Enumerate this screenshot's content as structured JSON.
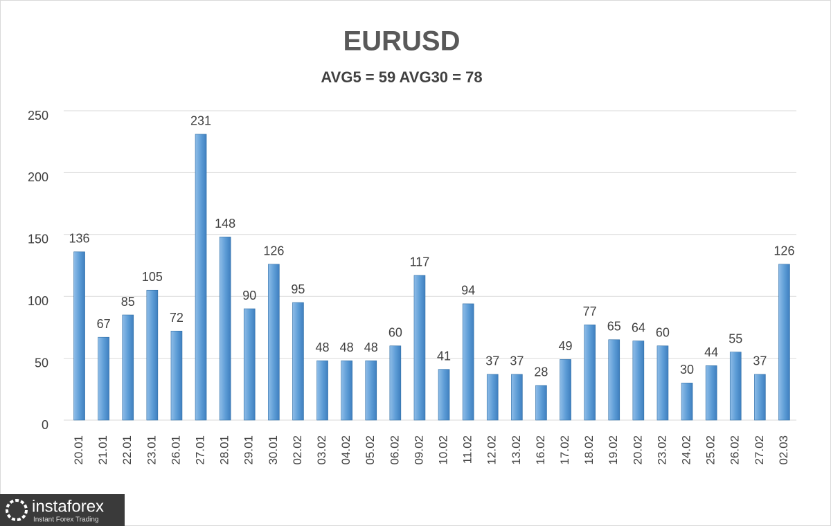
{
  "chart_data": {
    "type": "bar",
    "title": "EURUSD",
    "subtitle": "AVG5 = 59 AVG30 = 78",
    "categories": [
      "20.01",
      "21.01",
      "22.01",
      "23.01",
      "26.01",
      "27.01",
      "28.01",
      "29.01",
      "30.01",
      "02.02",
      "03.02",
      "04.02",
      "05.02",
      "06.02",
      "09.02",
      "10.02",
      "11.02",
      "12.02",
      "13.02",
      "16.02",
      "17.02",
      "18.02",
      "19.02",
      "20.02",
      "23.02",
      "24.02",
      "25.02",
      "26.02",
      "27.02",
      "02.03"
    ],
    "values": [
      136,
      67,
      85,
      105,
      72,
      231,
      148,
      90,
      126,
      95,
      48,
      48,
      48,
      60,
      117,
      41,
      94,
      37,
      37,
      28,
      49,
      77,
      65,
      64,
      60,
      30,
      44,
      55,
      37,
      126
    ],
    "color": "#5b9bd5",
    "ylim": [
      0,
      250
    ],
    "yticks": [
      0,
      50,
      100,
      150,
      200,
      250
    ],
    "grid": true
  },
  "watermark": {
    "brand": "instaforex",
    "tagline": "Instant Forex Trading"
  }
}
